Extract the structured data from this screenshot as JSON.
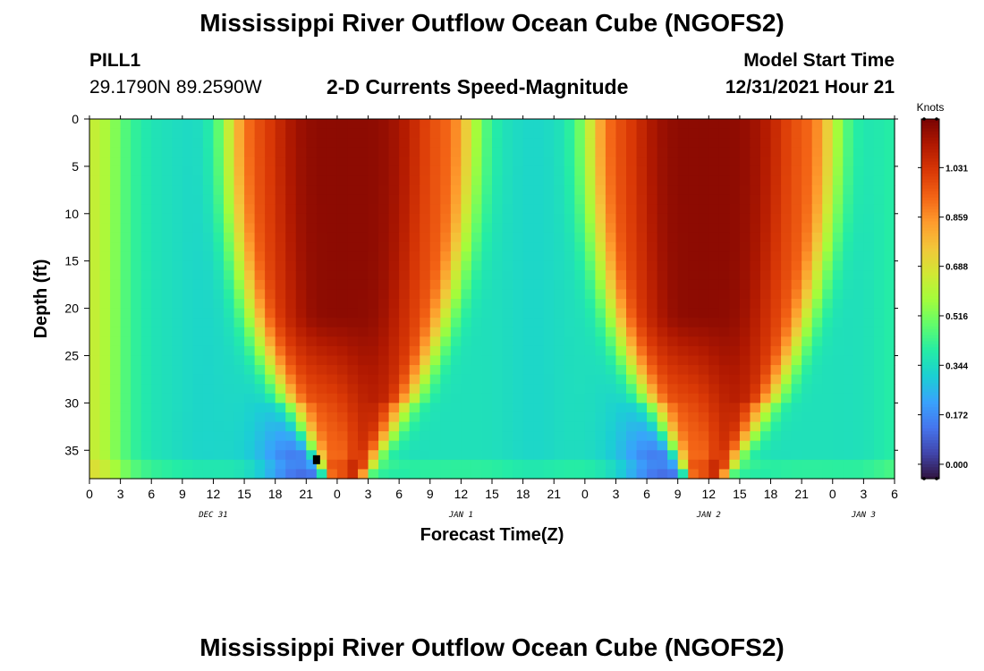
{
  "header": {
    "title": "Mississippi River Outflow Ocean Cube (NGOFS2)",
    "station_id": "PILL1",
    "station_coords": "29.1790N  89.2590W",
    "subtitle": "2-D Currents Speed-Magnitude",
    "model_start_label": "Model Start Time",
    "model_start_value": "12/31/2021 Hour 21"
  },
  "footer": {
    "title": "Mississippi River Outflow Ocean Cube (NGOFS2)"
  },
  "chart_data": {
    "type": "heatmap",
    "title": "2-D Currents Speed-Magnitude",
    "xlabel": "Forecast Time(Z)",
    "ylabel": "Depth (ft)",
    "x_range_hours": [
      0,
      78
    ],
    "x_step_hours": 1,
    "x_ticks": [
      "0",
      "3",
      "6",
      "9",
      "12",
      "15",
      "18",
      "21",
      "0",
      "3",
      "6",
      "9",
      "12",
      "15",
      "18",
      "21",
      "0",
      "3",
      "6",
      "9",
      "12",
      "15",
      "18",
      "21",
      "0",
      "3",
      "6"
    ],
    "x_tick_hours": [
      0,
      3,
      6,
      9,
      12,
      15,
      18,
      21,
      24,
      27,
      30,
      33,
      36,
      39,
      42,
      45,
      48,
      51,
      54,
      57,
      60,
      63,
      66,
      69,
      72,
      75,
      78
    ],
    "date_labels": [
      {
        "text": "DEC 31",
        "hour": 12
      },
      {
        "text": "JAN 1",
        "hour": 36
      },
      {
        "text": "JAN 2",
        "hour": 60
      },
      {
        "text": "JAN 3",
        "hour": 75
      }
    ],
    "y_range": [
      0,
      38
    ],
    "y_ticks": [
      0,
      5,
      10,
      15,
      20,
      25,
      30,
      35
    ],
    "depth_step_ft": 1,
    "colorbar": {
      "unit": "Knots",
      "min": -0.05,
      "max": 1.2,
      "ticks": [
        0.0,
        0.172,
        0.344,
        0.516,
        0.688,
        0.859,
        1.031
      ],
      "tick_labels": [
        "0.000",
        "0.172",
        "0.344",
        "0.516",
        "0.688",
        "0.859",
        "1.031"
      ],
      "palette": [
        "#30123b",
        "#4145ab",
        "#4675ed",
        "#39a2fc",
        "#1bcfd4",
        "#24eca6",
        "#61fc6c",
        "#a4fc3b",
        "#d1e834",
        "#f3c63a",
        "#fe9b2d",
        "#f36315",
        "#d93806",
        "#b11901",
        "#7a0403"
      ]
    },
    "speed_model": {
      "tidal_peaks_hours": [
        24.5,
        59.5
      ],
      "peak_speed_knots": 1.17,
      "slack_hours": [
        11,
        43,
        76
      ],
      "slack_speed_knots": 0.36,
      "near_bottom_minimum_hours": [
        22,
        57
      ],
      "near_bottom_minimum_speed_knots": 0.0,
      "marked_cell": {
        "hour": 22,
        "depth_ft": 36
      }
    }
  }
}
